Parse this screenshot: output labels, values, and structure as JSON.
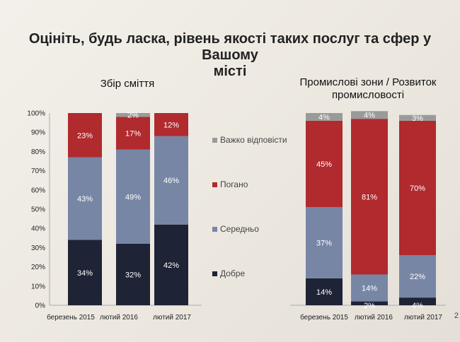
{
  "title": {
    "line1_a": "Оцініть, будь ласка, рівень якості таких послуг та сфер у Вашому",
    "line2": "місті"
  },
  "colors": {
    "good": "#1e2435",
    "medium": "#7886a6",
    "bad": "#b02a2e",
    "hard": "#9a9a9a"
  },
  "legend": {
    "hard": "Важко відповісти",
    "bad": "Погано",
    "medium": "Середньо",
    "good": "Добре"
  },
  "page_number": "2",
  "chart_data": [
    {
      "type": "bar",
      "stacked": true,
      "title": "Збір сміття",
      "categories": [
        "березень 2015",
        "лютий 2016",
        "лютий 2017"
      ],
      "ylim": [
        0,
        100
      ],
      "yticks": [
        "0%",
        "10%",
        "20%",
        "30%",
        "40%",
        "50%",
        "60%",
        "70%",
        "80%",
        "90%",
        "100%"
      ],
      "series": [
        {
          "name": "Добре",
          "key": "good",
          "values": [
            34,
            32,
            42
          ]
        },
        {
          "name": "Середньо",
          "key": "medium",
          "values": [
            43,
            49,
            46
          ]
        },
        {
          "name": "Погано",
          "key": "bad",
          "values": [
            23,
            17,
            12
          ]
        },
        {
          "name": "Важко відповісти",
          "key": "hard",
          "values": [
            0,
            2,
            0
          ]
        }
      ],
      "labels": [
        [
          "34%",
          "43%",
          "23%",
          ""
        ],
        [
          "32%",
          "49%",
          "17%",
          "2%"
        ],
        [
          "42%",
          "46%",
          "12%",
          ""
        ]
      ]
    },
    {
      "type": "bar",
      "stacked": true,
      "title": "Промислові зони / Розвиток промисловості",
      "categories": [
        "березень 2015",
        "лютий 2016",
        "лютий 2017"
      ],
      "ylim": [
        0,
        100
      ],
      "series": [
        {
          "name": "Добре",
          "key": "good",
          "values": [
            14,
            2,
            4
          ]
        },
        {
          "name": "Середньо",
          "key": "medium",
          "values": [
            37,
            14,
            22
          ]
        },
        {
          "name": "Погано",
          "key": "bad",
          "values": [
            45,
            81,
            70
          ]
        },
        {
          "name": "Важко відповісти",
          "key": "hard",
          "values": [
            4,
            4,
            3
          ]
        }
      ],
      "labels": [
        [
          "14%",
          "37%",
          "45%",
          "4%"
        ],
        [
          "2%",
          "14%",
          "81%",
          "4%"
        ],
        [
          "4%",
          "22%",
          "70%",
          "3%"
        ]
      ]
    }
  ]
}
